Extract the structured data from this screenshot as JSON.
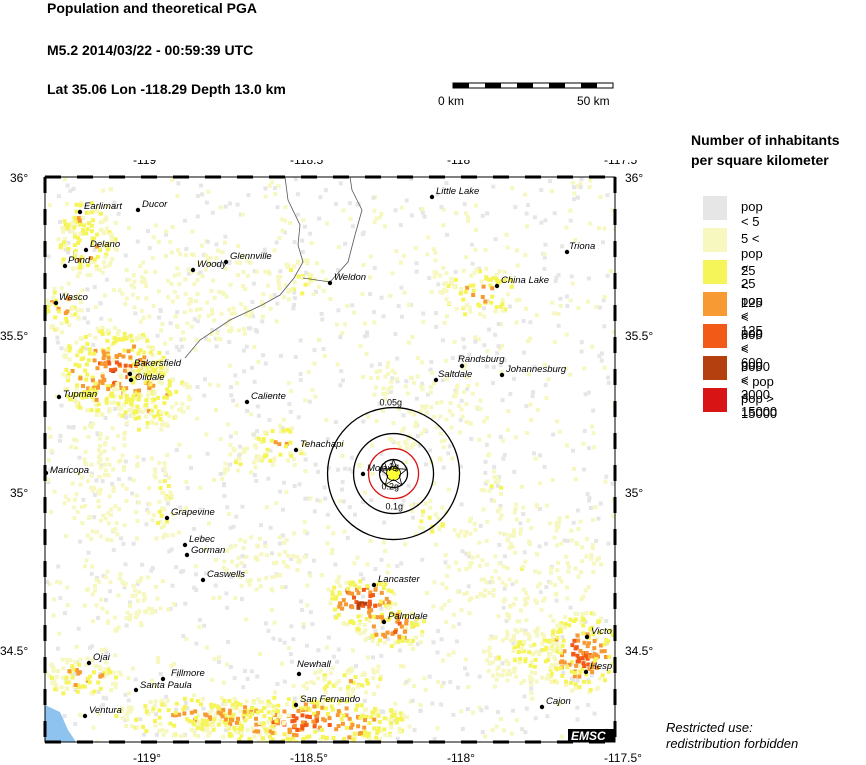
{
  "header": {
    "title": "Population and theoretical PGA",
    "event": "M5.2  2014/03/22 - 00:59:39 UTC",
    "location": "Lat 35.06     Lon -118.29     Depth  13.0 km"
  },
  "scale_bar": {
    "start_label": "0 km",
    "end_label": "50 km"
  },
  "legend": {
    "title_line1": "Number of inhabitants",
    "title_line2": "per square kilometer",
    "items": [
      {
        "label": "pop < 5",
        "color": "#e6e6e6"
      },
      {
        "label": "5 < pop < 25",
        "color": "#f7f7c0"
      },
      {
        "label": "25 < pop < 125",
        "color": "#f5f55a"
      },
      {
        "label": "125 < pop < 600",
        "color": "#f79a33"
      },
      {
        "label": "600 < pop < 3000",
        "color": "#f25a17"
      },
      {
        "label": "3000 < pop < 15000",
        "color": "#b5400f"
      },
      {
        "label": "pop > 15000",
        "color": "#d91414"
      }
    ]
  },
  "note": {
    "line1": "Restricted use:",
    "line2": "redistribution forbidden"
  },
  "map": {
    "lon_ticks": [
      "-119°",
      "-118.5°",
      "-118°",
      "-117.5°"
    ],
    "lat_ticks": [
      "36°",
      "35.5°",
      "35°",
      "34.5°"
    ],
    "ocean_color": "#8fc3ef",
    "epicenter_color": "#ffff33",
    "pga_labels": [
      "0.05g",
      "0.1g",
      "0.2g",
      "0.2g"
    ],
    "brand": "EMSC",
    "cities": [
      "Earlimart",
      "Ducor",
      "Delano",
      "Pond",
      "Wasco",
      "Woody",
      "Glennville",
      "Weldon",
      "Little Lake",
      "Triona",
      "China Lake",
      "Bakersfield",
      "Oildale",
      "Tupman",
      "Caliente",
      "Randsburg",
      "Saltdale",
      "Johannesburg",
      "Tehachapi",
      "Mojave",
      "Maricopa",
      "Grapevine",
      "Lebec",
      "Gorman",
      "Caswells",
      "Lancaster",
      "Palmdale",
      "Ojai",
      "Fillmore",
      "Santa Paula",
      "Newhall",
      "San Fernando",
      "Ventura",
      "Cajon",
      "Victo",
      "Hesp"
    ]
  }
}
